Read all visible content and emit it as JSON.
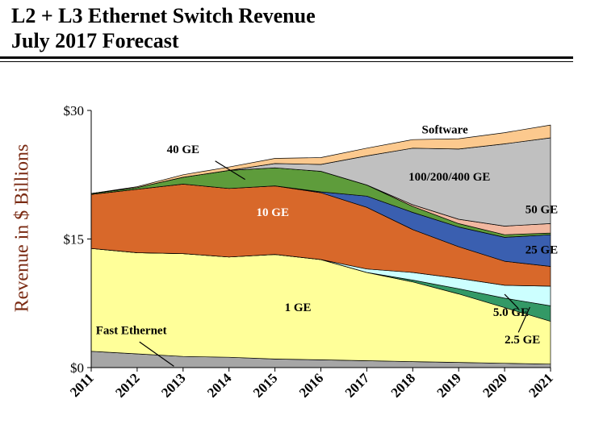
{
  "title_line1": "L2 + L3 Ethernet Switch Revenue",
  "title_line2": "July 2017 Forecast",
  "chart_data": {
    "type": "area",
    "stacked": true,
    "title": "L2 + L3 Ethernet Switch Revenue July 2017 Forecast",
    "ylabel": "Revenue in $ Billions",
    "xlabel": "",
    "x": [
      "2011",
      "2012",
      "2013",
      "2014",
      "2015",
      "2016",
      "2017",
      "2018",
      "2019",
      "2020",
      "2021"
    ],
    "ylim": [
      0,
      30
    ],
    "yticks": [
      0,
      15,
      30
    ],
    "ytick_labels": [
      "$0",
      "$15",
      "$30"
    ],
    "grid": false,
    "series": [
      {
        "name": "Fast Ethernet",
        "color": "#a6a6a6",
        "values": [
          1.9,
          1.6,
          1.3,
          1.2,
          1.0,
          0.9,
          0.8,
          0.7,
          0.6,
          0.5,
          0.4
        ]
      },
      {
        "name": "1 GE",
        "color": "#ffff99",
        "values": [
          12.0,
          11.8,
          12.0,
          11.7,
          12.2,
          11.7,
          10.3,
          9.3,
          8.0,
          6.5,
          5.0
        ]
      },
      {
        "name": "2.5 GE",
        "color": "#339966",
        "values": [
          0,
          0,
          0,
          0,
          0,
          0,
          0,
          0.2,
          0.6,
          1.1,
          1.8
        ]
      },
      {
        "name": "5.0 GE",
        "color": "#ccffff",
        "values": [
          0,
          0,
          0,
          0,
          0,
          0,
          0.4,
          0.9,
          1.2,
          1.5,
          2.3
        ]
      },
      {
        "name": "10 GE",
        "color": "#d8682a",
        "values": [
          6.3,
          7.4,
          8.1,
          8.0,
          8.0,
          7.8,
          7.2,
          5.0,
          3.7,
          2.8,
          2.3
        ]
      },
      {
        "name": "25 GE",
        "color": "#3a5fb0",
        "values": [
          0,
          0,
          0,
          0,
          0,
          0.1,
          1.3,
          2.0,
          2.3,
          2.8,
          3.7
        ]
      },
      {
        "name": "40 GE",
        "color": "#5e9c3b",
        "values": [
          0.1,
          0.2,
          0.8,
          2.1,
          2.1,
          2.4,
          1.3,
          0.7,
          0.4,
          0.3,
          0.2
        ]
      },
      {
        "name": "50 GE",
        "color": "#f2b8a0",
        "values": [
          0,
          0,
          0,
          0,
          0,
          0,
          0,
          0.2,
          0.5,
          1.0,
          1.1
        ]
      },
      {
        "name": "100/200/400 GE",
        "color": "#c0c0c0",
        "values": [
          0,
          0,
          0,
          0,
          0.5,
          0.8,
          3.4,
          6.6,
          8.2,
          9.6,
          10.0
        ]
      },
      {
        "name": "Software",
        "color": "#fcc98e",
        "values": [
          0,
          0.1,
          0.3,
          0.4,
          0.6,
          0.8,
          0.9,
          1.0,
          1.2,
          1.3,
          1.5
        ]
      }
    ]
  }
}
